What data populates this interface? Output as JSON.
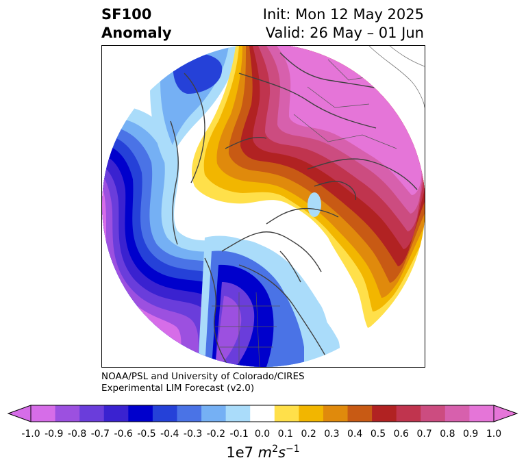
{
  "title": {
    "left_line1": "SF100",
    "left_line2": "Anomaly",
    "right_line1": "Init: Mon 12 May 2025",
    "right_line2": "Valid: 26 May – 01 Jun"
  },
  "credit": {
    "line1": "NOAA/PSL and University of Colorado/CIRES",
    "line2": "Experimental LIM Forecast (v2.0)"
  },
  "colorbar": {
    "ticks": [
      "-1.0",
      "-0.9",
      "-0.8",
      "-0.7",
      "-0.6",
      "-0.5",
      "-0.4",
      "-0.3",
      "-0.2",
      "-0.1",
      "0.0",
      "0.1",
      "0.2",
      "0.3",
      "0.4",
      "0.5",
      "0.6",
      "0.7",
      "0.8",
      "0.9",
      "1.0"
    ],
    "colors": [
      "#d66de8",
      "#9c50e0",
      "#6a3ddb",
      "#3a22d0",
      "#0000cc",
      "#2541d8",
      "#4a73e6",
      "#75b0f4",
      "#aadcfa",
      "#ffffff",
      "#ffe04a",
      "#f2b600",
      "#e08a0c",
      "#c85a14",
      "#b12222",
      "#c0344e",
      "#cc4c80",
      "#d760ad",
      "#e575d8"
    ],
    "ext_low_color": "#d66de8",
    "ext_high_color": "#e575d8",
    "units_base": "1e7 ",
    "units_m": "m",
    "units_m_exp": "2",
    "units_s": "s",
    "units_s_exp": "−1"
  }
}
